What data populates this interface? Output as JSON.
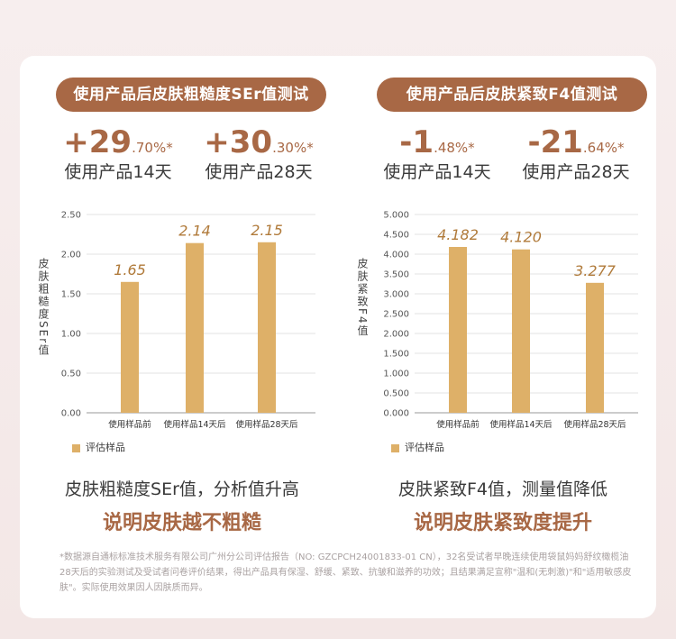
{
  "panels": [
    {
      "title": "使用产品后皮肤粗糙度SEr值测试",
      "stats": [
        {
          "big": "+29",
          "small": ".70%*",
          "caption": "使用产品14天"
        },
        {
          "big": "+30",
          "small": ".30%*",
          "caption": "使用产品28天"
        }
      ],
      "description": "皮肤粗糙度SEr值，分析值升高",
      "emphasis": "说明皮肤越不粗糙"
    },
    {
      "title": "使用产品后皮肤紧致F4值测试",
      "stats": [
        {
          "big": "-1",
          "small": ".48%*",
          "caption": "使用产品14天"
        },
        {
          "big": "-21",
          "small": ".64%*",
          "caption": "使用产品28天"
        }
      ],
      "description": "皮肤紧致F4值，测量值降低",
      "emphasis": "说明皮肤紧致度提升"
    }
  ],
  "chart_data": [
    {
      "type": "bar",
      "categories": [
        "使用样品前",
        "使用样品14天后",
        "使用样品28天后"
      ],
      "values": [
        1.65,
        2.14,
        2.15
      ],
      "value_labels": [
        "1.65",
        "2.14",
        "2.15"
      ],
      "ylabel": "皮肤粗糙度SEr值",
      "ylim": [
        0,
        2.5
      ],
      "yticks": [
        "0.00",
        "0.50",
        "1.00",
        "1.50",
        "2.00",
        "2.50"
      ],
      "ytick_values": [
        0,
        0.5,
        1.0,
        1.5,
        2.0,
        2.5
      ],
      "legend": "评估样品",
      "grid": true,
      "bar_color": "#deb068"
    },
    {
      "type": "bar",
      "categories": [
        "使用样品前",
        "使用样品14天后",
        "使用样品28天后"
      ],
      "values": [
        4.182,
        4.12,
        3.277
      ],
      "value_labels": [
        "4.182",
        "4.120",
        "3.277"
      ],
      "ylabel": "皮肤紧致F4值",
      "ylim": [
        0,
        5.0
      ],
      "yticks": [
        "0.000",
        "0.500",
        "1.000",
        "1.500",
        "2.000",
        "2.500",
        "3.000",
        "3.500",
        "4.000",
        "4.500",
        "5.000"
      ],
      "ytick_values": [
        0,
        0.5,
        1,
        1.5,
        2,
        2.5,
        3,
        3.5,
        4,
        4.5,
        5
      ],
      "legend": "评估样品",
      "grid": true,
      "bar_color": "#deb068"
    }
  ],
  "footnote": "*数据源自通标标准技术服务有限公司广州分公司评估报告（NO:    GZCPCH24001833-01 CN），32名受试者早晚连续使用袋鼠妈妈舒纹橄榄油28天后的实验测试及受试者问卷评价结果，得出产品具有保湿、舒缓、紧致、抗皱和滋养的功效；且结果满足宣称\"温和(无刺激)\"和\"适用敏感皮肤\"。实际使用效果因人因肤质而异。"
}
